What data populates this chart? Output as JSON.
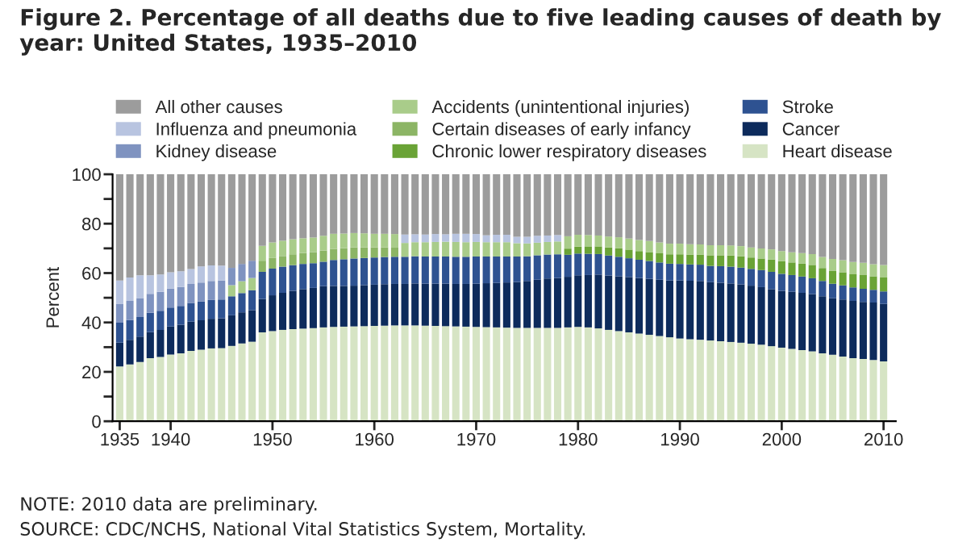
{
  "chart_data": {
    "type": "bar",
    "stacked": true,
    "title": "Figure 2. Percentage of all deaths due to five leading causes of death by year: United States, 1935–2010",
    "ylabel": "Percent",
    "annotations": [
      "NOTE: 2010 data are preliminary.",
      "SOURCE: CDC/NCHS, National Vital Statistics System, Mortality."
    ],
    "x": [
      1935,
      1936,
      1937,
      1938,
      1939,
      1940,
      1941,
      1942,
      1943,
      1944,
      1945,
      1946,
      1947,
      1948,
      1949,
      1950,
      1951,
      1952,
      1953,
      1954,
      1955,
      1956,
      1957,
      1958,
      1959,
      1960,
      1961,
      1962,
      1963,
      1964,
      1965,
      1966,
      1967,
      1968,
      1969,
      1970,
      1971,
      1972,
      1973,
      1974,
      1975,
      1976,
      1977,
      1978,
      1979,
      1980,
      1981,
      1982,
      1983,
      1984,
      1985,
      1986,
      1987,
      1988,
      1989,
      1990,
      1991,
      1992,
      1993,
      1994,
      1995,
      1996,
      1997,
      1998,
      1999,
      2000,
      2001,
      2002,
      2003,
      2004,
      2005,
      2006,
      2007,
      2008,
      2009,
      2010
    ],
    "xlim": [
      1934.3,
      2011.2
    ],
    "xticks": [
      1935,
      1940,
      1950,
      1960,
      1970,
      1980,
      1990,
      2000,
      2010
    ],
    "ylim": [
      0,
      100
    ],
    "yticks": [
      0,
      {
        "value": 10,
        "label": null
      },
      20,
      {
        "value": 30,
        "label": null
      },
      40,
      {
        "value": 50,
        "label": null
      },
      60,
      {
        "value": 70,
        "label": null
      },
      80,
      {
        "value": 90,
        "label": null
      },
      100
    ],
    "legend": "top",
    "series": [
      {
        "name": "Heart disease",
        "color": "#d6e4c4",
        "values": [
          22.2,
          23,
          24,
          25.5,
          26,
          27,
          27.5,
          28.5,
          29,
          29.5,
          29.6,
          30.5,
          31.5,
          32.2,
          36,
          36.5,
          37,
          37.3,
          37.5,
          37.7,
          38,
          38.2,
          38.3,
          38.4,
          38.5,
          38.6,
          38.7,
          38.8,
          38.8,
          38.8,
          38.7,
          38.6,
          38.5,
          38.4,
          38.3,
          38.2,
          38.1,
          38,
          37.9,
          37.8,
          37.8,
          37.8,
          37.8,
          37.8,
          38,
          38.2,
          38,
          37.6,
          37,
          36.5,
          36,
          35.5,
          35,
          34.5,
          34,
          33.5,
          33.2,
          33,
          32.7,
          32.4,
          32.1,
          31.8,
          31.4,
          31,
          30.4,
          29.8,
          29.3,
          28.8,
          28.3,
          27.5,
          26.9,
          26.2,
          25.5,
          25.2,
          24.8,
          24.2
        ]
      },
      {
        "name": "Cancer",
        "color": "#0d2b5c",
        "values": [
          9.6,
          10,
          10.3,
          10.6,
          11,
          11.4,
          11.6,
          11.8,
          11.9,
          12,
          12.1,
          12.4,
          12.6,
          12.8,
          13.5,
          14.5,
          15,
          15.5,
          16,
          16.3,
          16.7,
          16.6,
          16.5,
          16.5,
          16.6,
          16.7,
          16.8,
          16.8,
          16.8,
          17,
          17,
          17.1,
          17.2,
          17.2,
          17.3,
          17.5,
          17.8,
          18,
          18.3,
          18.6,
          19,
          19.5,
          20,
          20.2,
          20.5,
          20.9,
          21.2,
          21.8,
          22,
          22.2,
          22.4,
          22.5,
          22.7,
          22.8,
          23,
          23.5,
          23.7,
          23.8,
          23.6,
          23.7,
          23.7,
          23.6,
          23.5,
          23.3,
          23.1,
          23,
          23.1,
          23.2,
          23.2,
          23.1,
          22.9,
          23.1,
          23.2,
          23.1,
          23.3,
          23.3
        ]
      },
      {
        "name": "Stroke",
        "color": "#2e5291",
        "values": [
          8.1,
          8,
          7.9,
          7.8,
          7.7,
          7.6,
          7.6,
          7.6,
          7.6,
          7.6,
          7.6,
          7.7,
          7.8,
          8,
          11,
          10.8,
          10.6,
          10.4,
          10.2,
          10,
          9.9,
          10.5,
          10.8,
          11,
          11,
          11,
          11,
          11,
          11,
          11,
          11,
          11,
          11,
          11,
          11,
          11,
          10.8,
          10.7,
          10.5,
          10.3,
          10,
          9.9,
          9.7,
          9.6,
          8.9,
          8.8,
          8.6,
          8.3,
          8.1,
          7.9,
          7.6,
          7.4,
          7.2,
          7,
          6.8,
          6.7,
          6.6,
          6.6,
          6.6,
          6.7,
          6.8,
          6.8,
          6.8,
          6.9,
          7,
          6.9,
          6.8,
          6.6,
          6.4,
          6.2,
          5.9,
          5.7,
          5.5,
          5.3,
          5.1,
          5.1
        ]
      },
      {
        "name": "Chronic lower respiratory diseases",
        "color": "#6aa336",
        "values": [
          null,
          null,
          null,
          null,
          null,
          null,
          null,
          null,
          null,
          null,
          null,
          null,
          null,
          null,
          null,
          null,
          null,
          null,
          null,
          null,
          null,
          null,
          null,
          null,
          null,
          null,
          null,
          null,
          null,
          null,
          null,
          null,
          null,
          null,
          null,
          null,
          null,
          null,
          null,
          null,
          null,
          null,
          null,
          null,
          2.5,
          2.8,
          3,
          3.1,
          3.3,
          3.4,
          3.5,
          3.5,
          3.6,
          3.7,
          3.8,
          3.9,
          4,
          4.1,
          4.3,
          4.4,
          4.5,
          4.6,
          4.6,
          4.7,
          5,
          5.1,
          5.1,
          5.2,
          5.4,
          5.2,
          5.3,
          5.3,
          5.3,
          5.6,
          5.5,
          5.6
        ]
      },
      {
        "name": "Certain diseases of early infancy",
        "color": "#8cb565",
        "values": [
          null,
          null,
          null,
          null,
          null,
          null,
          null,
          null,
          null,
          null,
          null,
          null,
          null,
          null,
          4.5,
          4.3,
          4.3,
          4.4,
          4.4,
          4.5,
          4.5,
          4.5,
          4.5,
          4.5,
          4.3,
          4.1,
          3.9,
          3.7,
          null,
          null,
          null,
          null,
          null,
          null,
          null,
          null,
          null,
          null,
          null,
          null,
          null,
          null,
          null,
          null,
          null,
          null,
          null,
          null,
          null,
          null,
          null,
          null,
          null,
          null,
          null,
          null,
          null,
          null,
          null,
          null,
          null,
          null,
          null,
          null,
          null,
          null,
          null,
          null,
          null,
          null,
          null,
          null,
          null,
          null,
          null,
          null
        ]
      },
      {
        "name": "Accidents (unintentional injuries)",
        "color": "#a9cc8a",
        "values": [
          null,
          null,
          null,
          null,
          null,
          null,
          null,
          null,
          null,
          null,
          null,
          4.5,
          4.8,
          5,
          6,
          6.3,
          6.2,
          6.1,
          6,
          5.9,
          6,
          6.1,
          5.9,
          5.8,
          5.7,
          5.5,
          5.5,
          5.5,
          5.6,
          5.7,
          5.8,
          5.9,
          6,
          6,
          5.9,
          5.9,
          5.8,
          5.8,
          5.8,
          5.4,
          5.2,
          5.1,
          5.1,
          5.2,
          5,
          4.8,
          4.6,
          4.4,
          4.4,
          4.5,
          4.5,
          4.5,
          4.5,
          4.4,
          4.3,
          4.3,
          4.2,
          4.1,
          4.1,
          4.1,
          4.1,
          4.1,
          4.1,
          4.1,
          4.1,
          4.1,
          4.1,
          4.3,
          4.4,
          4.5,
          4.7,
          4.9,
          5,
          5,
          4.9,
          5.1
        ]
      },
      {
        "name": "Kidney disease",
        "color": "#7f93c0",
        "values": [
          7.7,
          7.7,
          7.7,
          7.7,
          7.7,
          7.7,
          7.7,
          7.7,
          7.7,
          7.7,
          7.7,
          7,
          7,
          7,
          null,
          null,
          null,
          null,
          null,
          null,
          null,
          null,
          null,
          null,
          null,
          null,
          null,
          null,
          null,
          null,
          null,
          null,
          null,
          null,
          null,
          null,
          null,
          null,
          null,
          null,
          null,
          null,
          null,
          null,
          null,
          null,
          null,
          null,
          null,
          null,
          null,
          null,
          null,
          null,
          null,
          null,
          null,
          null,
          null,
          null,
          null,
          null,
          null,
          null,
          null,
          null,
          null,
          null,
          null,
          null,
          null,
          null,
          null,
          null,
          null,
          null
        ]
      },
      {
        "name": "Influenza and pneumonia",
        "color": "#b8c4e0",
        "values": [
          9.4,
          9.5,
          9.2,
          7.5,
          7,
          6.6,
          6.3,
          6,
          6.5,
          6.3,
          6,
          null,
          null,
          null,
          null,
          null,
          null,
          null,
          null,
          null,
          null,
          null,
          null,
          null,
          null,
          null,
          null,
          null,
          3.4,
          3.2,
          3.1,
          3.2,
          3,
          3.3,
          3.4,
          3.2,
          2.8,
          3,
          3,
          2.6,
          2.7,
          2.8,
          2.6,
          2.6,
          null,
          null,
          null,
          null,
          null,
          null,
          null,
          null,
          null,
          null,
          null,
          null,
          null,
          null,
          null,
          null,
          null,
          null,
          null,
          null,
          null,
          null,
          null,
          null,
          null,
          null,
          null,
          null,
          null,
          null,
          null,
          null
        ]
      },
      {
        "name": "All other causes",
        "color": "#9c9c9c",
        "values": [
          43.0,
          41.8,
          40.9,
          40.9,
          40.6,
          39.7,
          39.3,
          38.4,
          37.3,
          36.9,
          37.0,
          37.9,
          36.3,
          35.0,
          29.0,
          27.6,
          26.9,
          26.3,
          25.9,
          25.6,
          24.9,
          24.1,
          24.0,
          23.8,
          23.9,
          24.1,
          24.1,
          24.2,
          24.4,
          24.3,
          24.4,
          24.2,
          24.3,
          24.1,
          24.1,
          24.2,
          24.7,
          24.5,
          24.5,
          25.3,
          25.3,
          24.9,
          24.8,
          24.6,
          25.1,
          24.5,
          24.6,
          24.8,
          25.2,
          25.5,
          26.0,
          26.6,
          27.0,
          27.6,
          28.1,
          28.1,
          28.3,
          28.4,
          28.7,
          28.7,
          28.8,
          29.1,
          29.6,
          30.0,
          30.4,
          31.1,
          31.6,
          31.9,
          32.3,
          33.5,
          34.3,
          34.8,
          35.5,
          35.8,
          36.4,
          36.7
        ]
      }
    ]
  }
}
